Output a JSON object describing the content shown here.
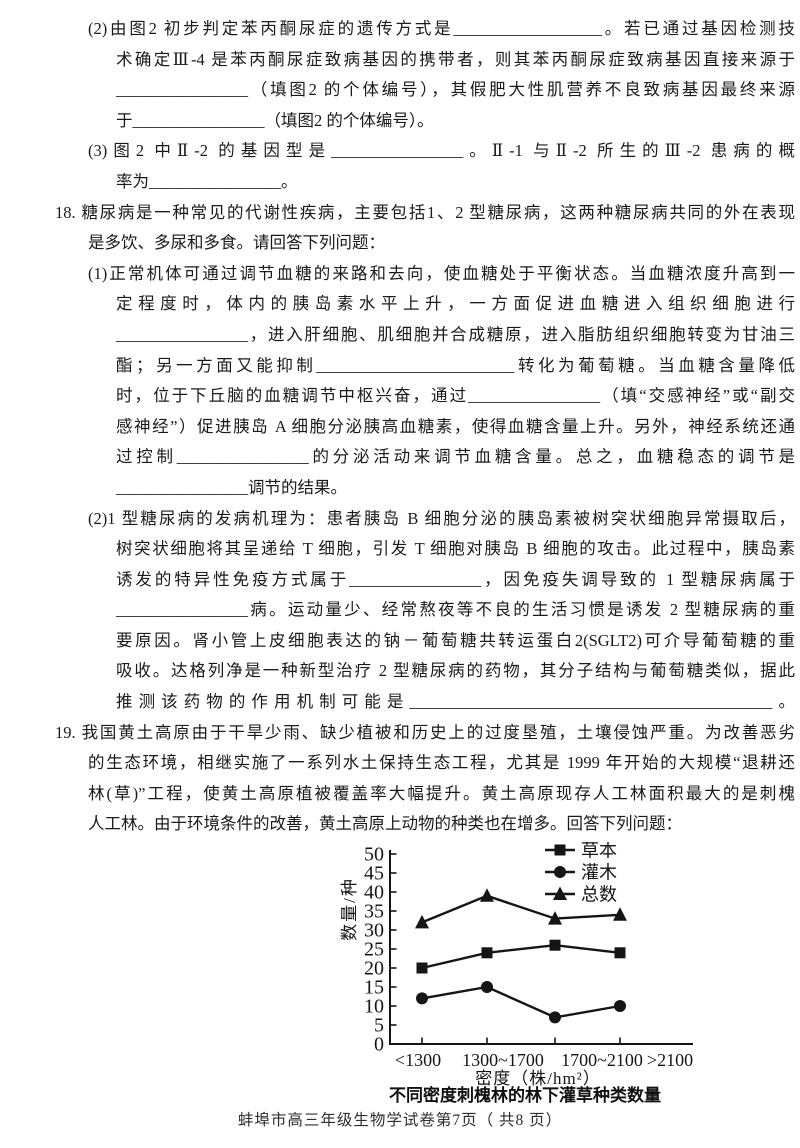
{
  "page": {
    "footer": "蚌埠市高三年级生物学试卷第7页（ 共8 页）"
  },
  "content": {
    "q17_2": {
      "lines": [
        "(2)由图2 初步判定苯丙酮尿症的遗传方式是__________________。若已通过基因检测技",
        "术确定Ⅲ-4 是苯丙酮尿症致病基因的携带者，则其苯丙酮尿症致病基因直接来源于",
        "________________（填图2 的个体编号），其假肥大性肌营养不良致病基因最终来源",
        "于________________（填图2 的个体编号）。"
      ]
    },
    "q17_3": {
      "lines": [
        "(3)图2 中Ⅱ-2 的基因型是________________。Ⅱ-1 与Ⅱ-2 所生的Ⅲ-2 患病的概",
        "率为________________。"
      ]
    },
    "q18_intro": {
      "lines": [
        "18. 糖尿病是一种常见的代谢性疾病，主要包括1、2 型糖尿病，这两种糖尿病共同的外在表现",
        "是多饮、多尿和多食。请回答下列问题："
      ]
    },
    "q18_1": {
      "lines": [
        "(1)正常机体可通过调节血糖的来路和去向，使血糖处于平衡状态。当血糖浓度升高到一",
        "定程度时，体内的胰岛素水平上升，一方面促进血糖进入组织细胞进行",
        "________________，进入肝细胞、肌细胞并合成糖原，进入脂肪组织细胞转变为甘油三",
        "酯；另一方面又能抑制________________________转化为葡萄糖。当血糖含量降低",
        "时，位于下丘脑的血糖调节中枢兴奋，通过________________（填“交感神经”或“副交",
        "感神经”）促进胰岛 A 细胞分泌胰高血糖素，使得血糖含量上升。另外，神经系统还通",
        "过控制________________的分泌活动来调节血糖含量。总之，血糖稳态的调节是",
        "________________调节的结果。"
      ]
    },
    "q18_2": {
      "lines": [
        "(2)1 型糖尿病的发病机理为：患者胰岛 B 细胞分泌的胰岛素被树突状细胞异常摄取后，",
        "树突状细胞将其呈递给 T 细胞，引发 T 细胞对胰岛 B 细胞的攻击。此过程中，胰岛素",
        "诱发的特异性免疫方式属于________________，因免疫失调导致的 1 型糖尿病属于",
        "________________病。运动量少、经常熬夜等不良的生活习惯是诱发 2 型糖尿病的重",
        "要原因。肾小管上皮细胞表达的钠－葡萄糖共转运蛋白2(SGLT2)可介导葡萄糖的重",
        "吸收。达格列净是一种新型治疗 2 型糖尿病的药物，其分子结构与葡萄糖类似，据此",
        "推测该药物的作用机制可能是____________________________________________。"
      ]
    },
    "q19_intro": {
      "lines": [
        "19. 我国黄土高原由于干旱少雨、缺少植被和历史上的过度垦殖，土壤侵蚀严重。为改善恶劣",
        "的生态环境，相继实施了一系列水土保持生态工程，尤其是 1999 年开始的大规模“退耕还",
        "林(草)”工程，使黄土高原植被覆盖率大幅提升。黄土高原现存人工林面积最大的是刺槐",
        "人工林。由于环境条件的改善，黄土高原上动物的种类也在增多。回答下列问题："
      ]
    }
  },
  "chart_data": {
    "type": "line",
    "categories": [
      "<1300",
      "1300~1700",
      "1700~2100",
      ">2100"
    ],
    "series": [
      {
        "name": "草本",
        "marker": "square",
        "values": [
          20,
          24,
          26,
          24
        ]
      },
      {
        "name": "灌木",
        "marker": "circle",
        "values": [
          12,
          15,
          7,
          10
        ]
      },
      {
        "name": "总数",
        "marker": "triangle",
        "values": [
          32,
          39,
          33,
          34
        ]
      }
    ],
    "ylabel": "数量/种",
    "xlabel": "密度（株/hm²）",
    "caption": "不同密度刺槐林的林下灌草种类数量",
    "ylim": [
      0,
      50
    ],
    "ytick_step": 5,
    "legend_position": "top-right",
    "grid": false,
    "color": "#151515"
  }
}
